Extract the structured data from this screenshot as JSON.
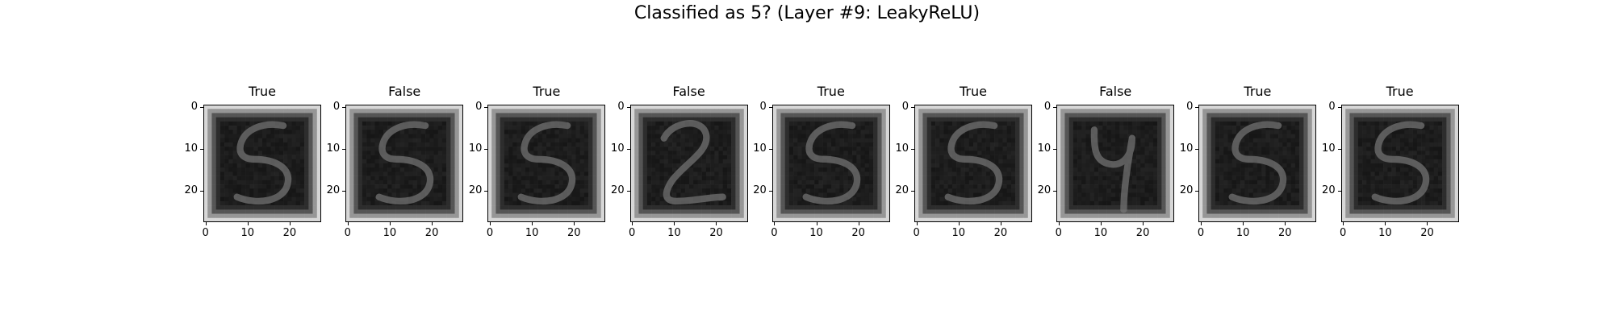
{
  "figure": {
    "title": "Classified as 5? (Layer #9: LeakyReLU)"
  },
  "chart_data": {
    "type": "heatmap",
    "colormap": "gray",
    "title": "Classified as 5? (Layer #9: LeakyReLU)",
    "image_size": [
      28,
      28
    ],
    "xlim": [
      0,
      27
    ],
    "ylim": [
      27,
      0
    ],
    "x_ticks": [
      0,
      10,
      20
    ],
    "y_ticks": [
      0,
      10,
      20
    ],
    "x_tick_labels": [
      "0",
      "10",
      "20"
    ],
    "y_tick_labels": [
      "0",
      "10",
      "20"
    ],
    "panels": [
      {
        "label": "True",
        "digit_shape": "5"
      },
      {
        "label": "False",
        "digit_shape": "5"
      },
      {
        "label": "True",
        "digit_shape": "5"
      },
      {
        "label": "False",
        "digit_shape": "2"
      },
      {
        "label": "True",
        "digit_shape": "5"
      },
      {
        "label": "True",
        "digit_shape": "5"
      },
      {
        "label": "False",
        "digit_shape": "4"
      },
      {
        "label": "True",
        "digit_shape": "5"
      },
      {
        "label": "True",
        "digit_shape": "5"
      }
    ]
  }
}
